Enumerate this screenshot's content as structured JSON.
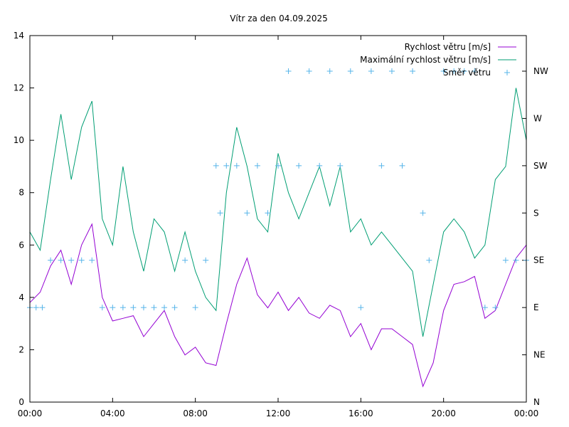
{
  "chart_data": {
    "type": "line",
    "title": "Vítr za den 04.09.2025",
    "xlabel": "",
    "ylabel": "",
    "x_ticks": [
      "00:00",
      "04:00",
      "08:00",
      "12:00",
      "16:00",
      "20:00",
      "00:00"
    ],
    "y_ticks": [
      "0",
      "2",
      "4",
      "6",
      "8",
      "10",
      "12",
      "14"
    ],
    "y2_ticks": [
      "N",
      "NE",
      "E",
      "SE",
      "S",
      "SW",
      "W",
      "NW"
    ],
    "xlim_hours": [
      0,
      24
    ],
    "ylim": [
      0,
      14
    ],
    "grid": false,
    "legend_position": "top-right",
    "colors": {
      "speed": "#9400d3",
      "gust": "#009e73",
      "direction": "#56b4e9"
    },
    "series": [
      {
        "name": "Rychlost větru [m/s]",
        "key": "speed",
        "style": "line",
        "x_hours": [
          0,
          0.5,
          1,
          1.5,
          2,
          2.5,
          3,
          3.5,
          4,
          4.5,
          5,
          5.5,
          6,
          6.5,
          7,
          7.5,
          8,
          8.5,
          9,
          9.5,
          10,
          10.5,
          11,
          11.5,
          12,
          12.5,
          13,
          13.5,
          14,
          14.5,
          15,
          15.5,
          16,
          16.5,
          17,
          17.5,
          18,
          18.5,
          19,
          19.5,
          20,
          20.5,
          21,
          21.5,
          22,
          22.5,
          23,
          23.5,
          24
        ],
        "values": [
          3.8,
          4.2,
          5.2,
          5.8,
          4.5,
          6.0,
          6.8,
          4.0,
          3.1,
          3.2,
          3.3,
          2.5,
          3.0,
          3.5,
          2.5,
          1.8,
          2.1,
          1.5,
          1.4,
          3.0,
          4.5,
          5.5,
          4.1,
          3.6,
          4.2,
          3.5,
          4.0,
          3.4,
          3.2,
          3.7,
          3.5,
          2.5,
          3.0,
          2.0,
          2.8,
          2.8,
          2.5,
          2.2,
          0.6,
          1.5,
          3.5,
          4.5,
          4.6,
          4.8,
          3.2,
          3.5,
          4.5,
          5.5,
          6.0
        ]
      },
      {
        "name": "Maximální rychlost větru [m/s]",
        "key": "gust",
        "style": "line",
        "x_hours": [
          0,
          0.5,
          1,
          1.5,
          2,
          2.5,
          3,
          3.5,
          4,
          4.5,
          5,
          5.5,
          6,
          6.5,
          7,
          7.5,
          8,
          8.5,
          9,
          9.5,
          10,
          10.5,
          11,
          11.5,
          12,
          12.5,
          13,
          13.5,
          14,
          14.5,
          15,
          15.5,
          16,
          16.5,
          17,
          17.5,
          18,
          18.5,
          19,
          19.5,
          20,
          20.5,
          21,
          21.5,
          22,
          22.5,
          23,
          23.5,
          24
        ],
        "values": [
          6.5,
          5.8,
          8.5,
          11.0,
          8.5,
          10.5,
          11.5,
          7.0,
          6.0,
          9.0,
          6.5,
          5.0,
          7.0,
          6.5,
          5.0,
          6.5,
          5.0,
          4.0,
          3.5,
          8.0,
          10.5,
          9.0,
          7.0,
          6.5,
          9.5,
          8.0,
          7.0,
          8.0,
          9.0,
          7.5,
          9.0,
          6.5,
          7.0,
          6.0,
          6.5,
          6.0,
          5.5,
          5.0,
          2.5,
          4.5,
          6.5,
          7.0,
          6.5,
          5.5,
          6.0,
          8.5,
          9.0,
          12.0,
          10.0
        ]
      },
      {
        "name": "Směr větru",
        "key": "direction",
        "style": "points",
        "axis": "y2",
        "x_hours": [
          0,
          0.3,
          0.6,
          1,
          1.5,
          2,
          2.5,
          3,
          3.5,
          4,
          4.5,
          5,
          5.5,
          6,
          6.5,
          7,
          7.5,
          8,
          8.5,
          9,
          9.2,
          9.5,
          10,
          10.5,
          11,
          11.5,
          12,
          12.5,
          13,
          13.5,
          14,
          14.5,
          15,
          15.5,
          16,
          16.5,
          17,
          17.5,
          18,
          18.5,
          19,
          19.3,
          20,
          20.5,
          21,
          21.5,
          22,
          22.5,
          23,
          23.5,
          24
        ],
        "values": [
          "E",
          "E",
          "E",
          "SE",
          "SE",
          "SE",
          "SE",
          "SE",
          "E",
          "E",
          "E",
          "E",
          "E",
          "E",
          "E",
          "E",
          "SE",
          "E",
          "SE",
          "SW",
          "S",
          "SW",
          "SW",
          "S",
          "SW",
          "S",
          "SW",
          "NW",
          "SW",
          "NW",
          "SW",
          "NW",
          "SW",
          "NW",
          "E",
          "NW",
          "SW",
          "NW",
          "SW",
          "NW",
          "S",
          "SE",
          "NW",
          "NW",
          "NW",
          "NW",
          "E",
          "E",
          "SE",
          "SE",
          "SE"
        ]
      }
    ]
  }
}
